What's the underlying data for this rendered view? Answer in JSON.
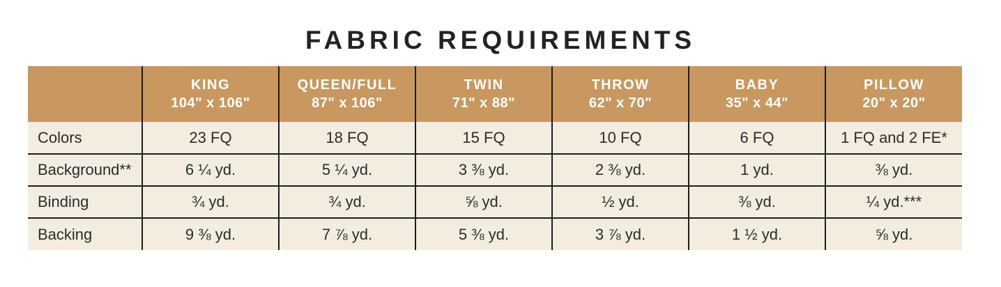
{
  "title": "FABRIC REQUIREMENTS",
  "theme": {
    "header_bg": "#C99760",
    "row_bg": "#F2EDDF",
    "grid_color": "#1D1D1B",
    "header_text": "#FFFFFF",
    "body_text": "#2B2B2B",
    "title_color": "#232323",
    "page_bg": "#FFFFFF"
  },
  "table": {
    "corner_label": "",
    "columns": [
      {
        "name": "KING",
        "size": "104\" x 106\""
      },
      {
        "name": "QUEEN/FULL",
        "size": "87\" x 106\""
      },
      {
        "name": "TWIN",
        "size": "71\" x 88\""
      },
      {
        "name": "THROW",
        "size": "62\" x 70\""
      },
      {
        "name": "BABY",
        "size": "35\" x 44\""
      },
      {
        "name": "PILLOW",
        "size": "20\" x 20\""
      }
    ],
    "rows": [
      {
        "label": "Colors",
        "values": [
          "23 FQ",
          "18 FQ",
          "15 FQ",
          "10 FQ",
          "6 FQ",
          "1 FQ and 2 FE*"
        ]
      },
      {
        "label": "Background**",
        "values": [
          "6 ¼ yd.",
          "5 ¼ yd.",
          "3 ⅜ yd.",
          "2 ⅜ yd.",
          "1 yd.",
          "⅜ yd."
        ]
      },
      {
        "label": "Binding",
        "values": [
          "¾ yd.",
          "¾ yd.",
          "⅝ yd.",
          "½ yd.",
          "⅜ yd.",
          "¼ yd.***"
        ]
      },
      {
        "label": "Backing",
        "values": [
          "9 ⅜ yd.",
          "7 ⅞ yd.",
          "5 ⅜ yd.",
          "3 ⅞ yd.",
          "1 ½ yd.",
          "⅝ yd."
        ]
      }
    ]
  }
}
